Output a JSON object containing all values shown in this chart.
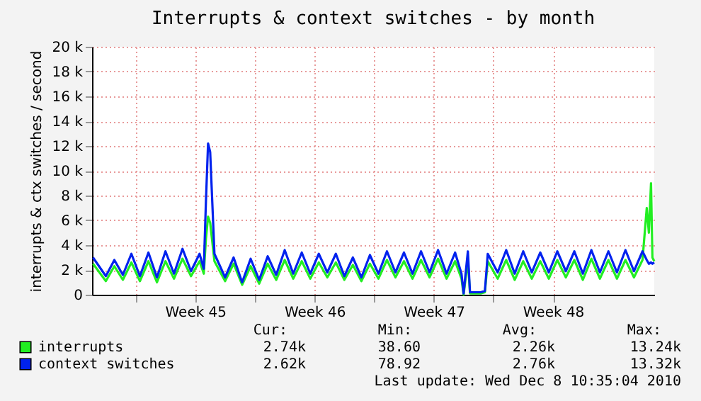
{
  "chart_data": {
    "type": "line",
    "title": "Interrupts & context switches - by month",
    "ylabel": "interrupts & ctx switches / second",
    "x": [
      "2010-11-05T12:00",
      "2010-11-06T06:00",
      "2010-11-06T18:00",
      "2010-11-07T06:00",
      "2010-11-07T18:00",
      "2010-11-08T06:00",
      "2010-11-08T18:00",
      "2010-11-09T06:00",
      "2010-11-09T18:00",
      "2010-11-10T06:00",
      "2010-11-10T18:00",
      "2010-11-11T06:00",
      "2010-11-11T18:00",
      "2010-11-12T00:00",
      "2010-11-12T03:00",
      "2010-11-12T06:00",
      "2010-11-12T09:00",
      "2010-11-12T15:00",
      "2010-11-13T06:00",
      "2010-11-13T18:00",
      "2010-11-14T06:00",
      "2010-11-14T18:00",
      "2010-11-15T06:00",
      "2010-11-15T18:00",
      "2010-11-16T06:00",
      "2010-11-16T18:00",
      "2010-11-17T06:00",
      "2010-11-17T18:00",
      "2010-11-18T06:00",
      "2010-11-18T18:00",
      "2010-11-19T06:00",
      "2010-11-19T18:00",
      "2010-11-20T06:00",
      "2010-11-20T18:00",
      "2010-11-21T06:00",
      "2010-11-21T18:00",
      "2010-11-22T06:00",
      "2010-11-22T18:00",
      "2010-11-23T06:00",
      "2010-11-23T18:00",
      "2010-11-24T06:00",
      "2010-11-24T18:00",
      "2010-11-25T06:00",
      "2010-11-25T18:00",
      "2010-11-26T06:00",
      "2010-11-26T18:00",
      "2010-11-27T03:00",
      "2010-11-27T06:00",
      "2010-11-27T12:00",
      "2010-11-27T15:00",
      "2010-11-28T06:00",
      "2010-11-28T12:00",
      "2010-11-28T16:00",
      "2010-11-29T06:00",
      "2010-11-29T18:00",
      "2010-11-30T06:00",
      "2010-11-30T18:00",
      "2010-12-01T06:00",
      "2010-12-01T18:00",
      "2010-12-02T06:00",
      "2010-12-02T18:00",
      "2010-12-03T06:00",
      "2010-12-03T18:00",
      "2010-12-04T06:00",
      "2010-12-04T18:00",
      "2010-12-05T06:00",
      "2010-12-05T18:00",
      "2010-12-06T06:00",
      "2010-12-06T18:00",
      "2010-12-07T06:00",
      "2010-12-07T18:00",
      "2010-12-08T00:00",
      "2010-12-08T03:00",
      "2010-12-08T06:00",
      "2010-12-08T08:00",
      "2010-12-08T10:35"
    ],
    "series": [
      {
        "name": "interrupts",
        "color": "#22ee22",
        "values": [
          2500,
          1100,
          2300,
          1200,
          2600,
          1100,
          2700,
          1000,
          2700,
          1300,
          2900,
          1500,
          2700,
          1700,
          4500,
          6300,
          5800,
          2700,
          1100,
          2500,
          800,
          2300,
          900,
          2500,
          1200,
          2800,
          1300,
          2700,
          1300,
          2600,
          1400,
          2600,
          1200,
          2400,
          1100,
          2500,
          1300,
          2800,
          1400,
          2700,
          1300,
          2800,
          1400,
          2900,
          1300,
          2700,
          1300,
          0,
          2800,
          100,
          100,
          200,
          2700,
          1300,
          2800,
          1200,
          2700,
          1300,
          2700,
          1300,
          2800,
          1400,
          2800,
          1200,
          2900,
          1300,
          2800,
          1300,
          2800,
          1400,
          2800,
          7000,
          5000,
          9000,
          3000,
          2700
        ]
      },
      {
        "name": "context switches",
        "color": "#0022ee",
        "values": [
          3000,
          1500,
          2800,
          1600,
          3300,
          1500,
          3400,
          1400,
          3500,
          1700,
          3700,
          1900,
          3300,
          2100,
          7500,
          12200,
          11500,
          3300,
          1400,
          3000,
          1000,
          2900,
          1200,
          3100,
          1600,
          3600,
          1700,
          3400,
          1700,
          3300,
          1800,
          3300,
          1500,
          3000,
          1400,
          3200,
          1700,
          3500,
          1800,
          3400,
          1700,
          3500,
          1800,
          3600,
          1700,
          3400,
          1700,
          100,
          3500,
          200,
          200,
          300,
          3300,
          1800,
          3600,
          1700,
          3500,
          1800,
          3400,
          1800,
          3500,
          1900,
          3500,
          1700,
          3600,
          1800,
          3500,
          1800,
          3600,
          1900,
          3500,
          2800,
          2500,
          2600,
          2500,
          2600
        ]
      }
    ],
    "xlim": [
      "2010-11-05T10:35",
      "2010-12-08T10:35"
    ],
    "xticks": [
      {
        "value": "2010-11-08T00:00",
        "label": null
      },
      {
        "value": "2010-11-11T12:00",
        "label": "Week 45"
      },
      {
        "value": "2010-11-15T00:00",
        "label": null
      },
      {
        "value": "2010-11-18T12:00",
        "label": "Week 46"
      },
      {
        "value": "2010-11-22T00:00",
        "label": null
      },
      {
        "value": "2010-11-25T12:00",
        "label": "Week 47"
      },
      {
        "value": "2010-11-29T00:00",
        "label": null
      },
      {
        "value": "2010-12-02T12:00",
        "label": "Week 48"
      }
    ],
    "ylim": [
      0,
      20000
    ],
    "yticks": [
      0,
      {
        "value": 2000,
        "label": "2 k"
      },
      {
        "value": 4000,
        "label": "4 k"
      },
      {
        "value": 6000,
        "label": "6 k"
      },
      {
        "value": 8000,
        "label": "8 k"
      },
      {
        "value": 10000,
        "label": "10 k"
      },
      {
        "value": 12000,
        "label": "12 k"
      },
      {
        "value": 14000,
        "label": "14 k"
      },
      {
        "value": 16000,
        "label": "16 k"
      },
      {
        "value": 18000,
        "label": "18 k"
      },
      {
        "value": 20000,
        "label": "20 k"
      }
    ],
    "grid": true,
    "legend": "bottom left",
    "marker": "none",
    "line_style": "solid",
    "annotations": [
      "Cur:",
      "Min:",
      "Avg:",
      "Max:",
      "2.74k",
      "38.60",
      "2.26k",
      "13.24k",
      "2.62k",
      "78.92",
      "2.76k",
      "13.32k",
      "Last update: Wed Dec  8 10:35:04 2010"
    ]
  }
}
